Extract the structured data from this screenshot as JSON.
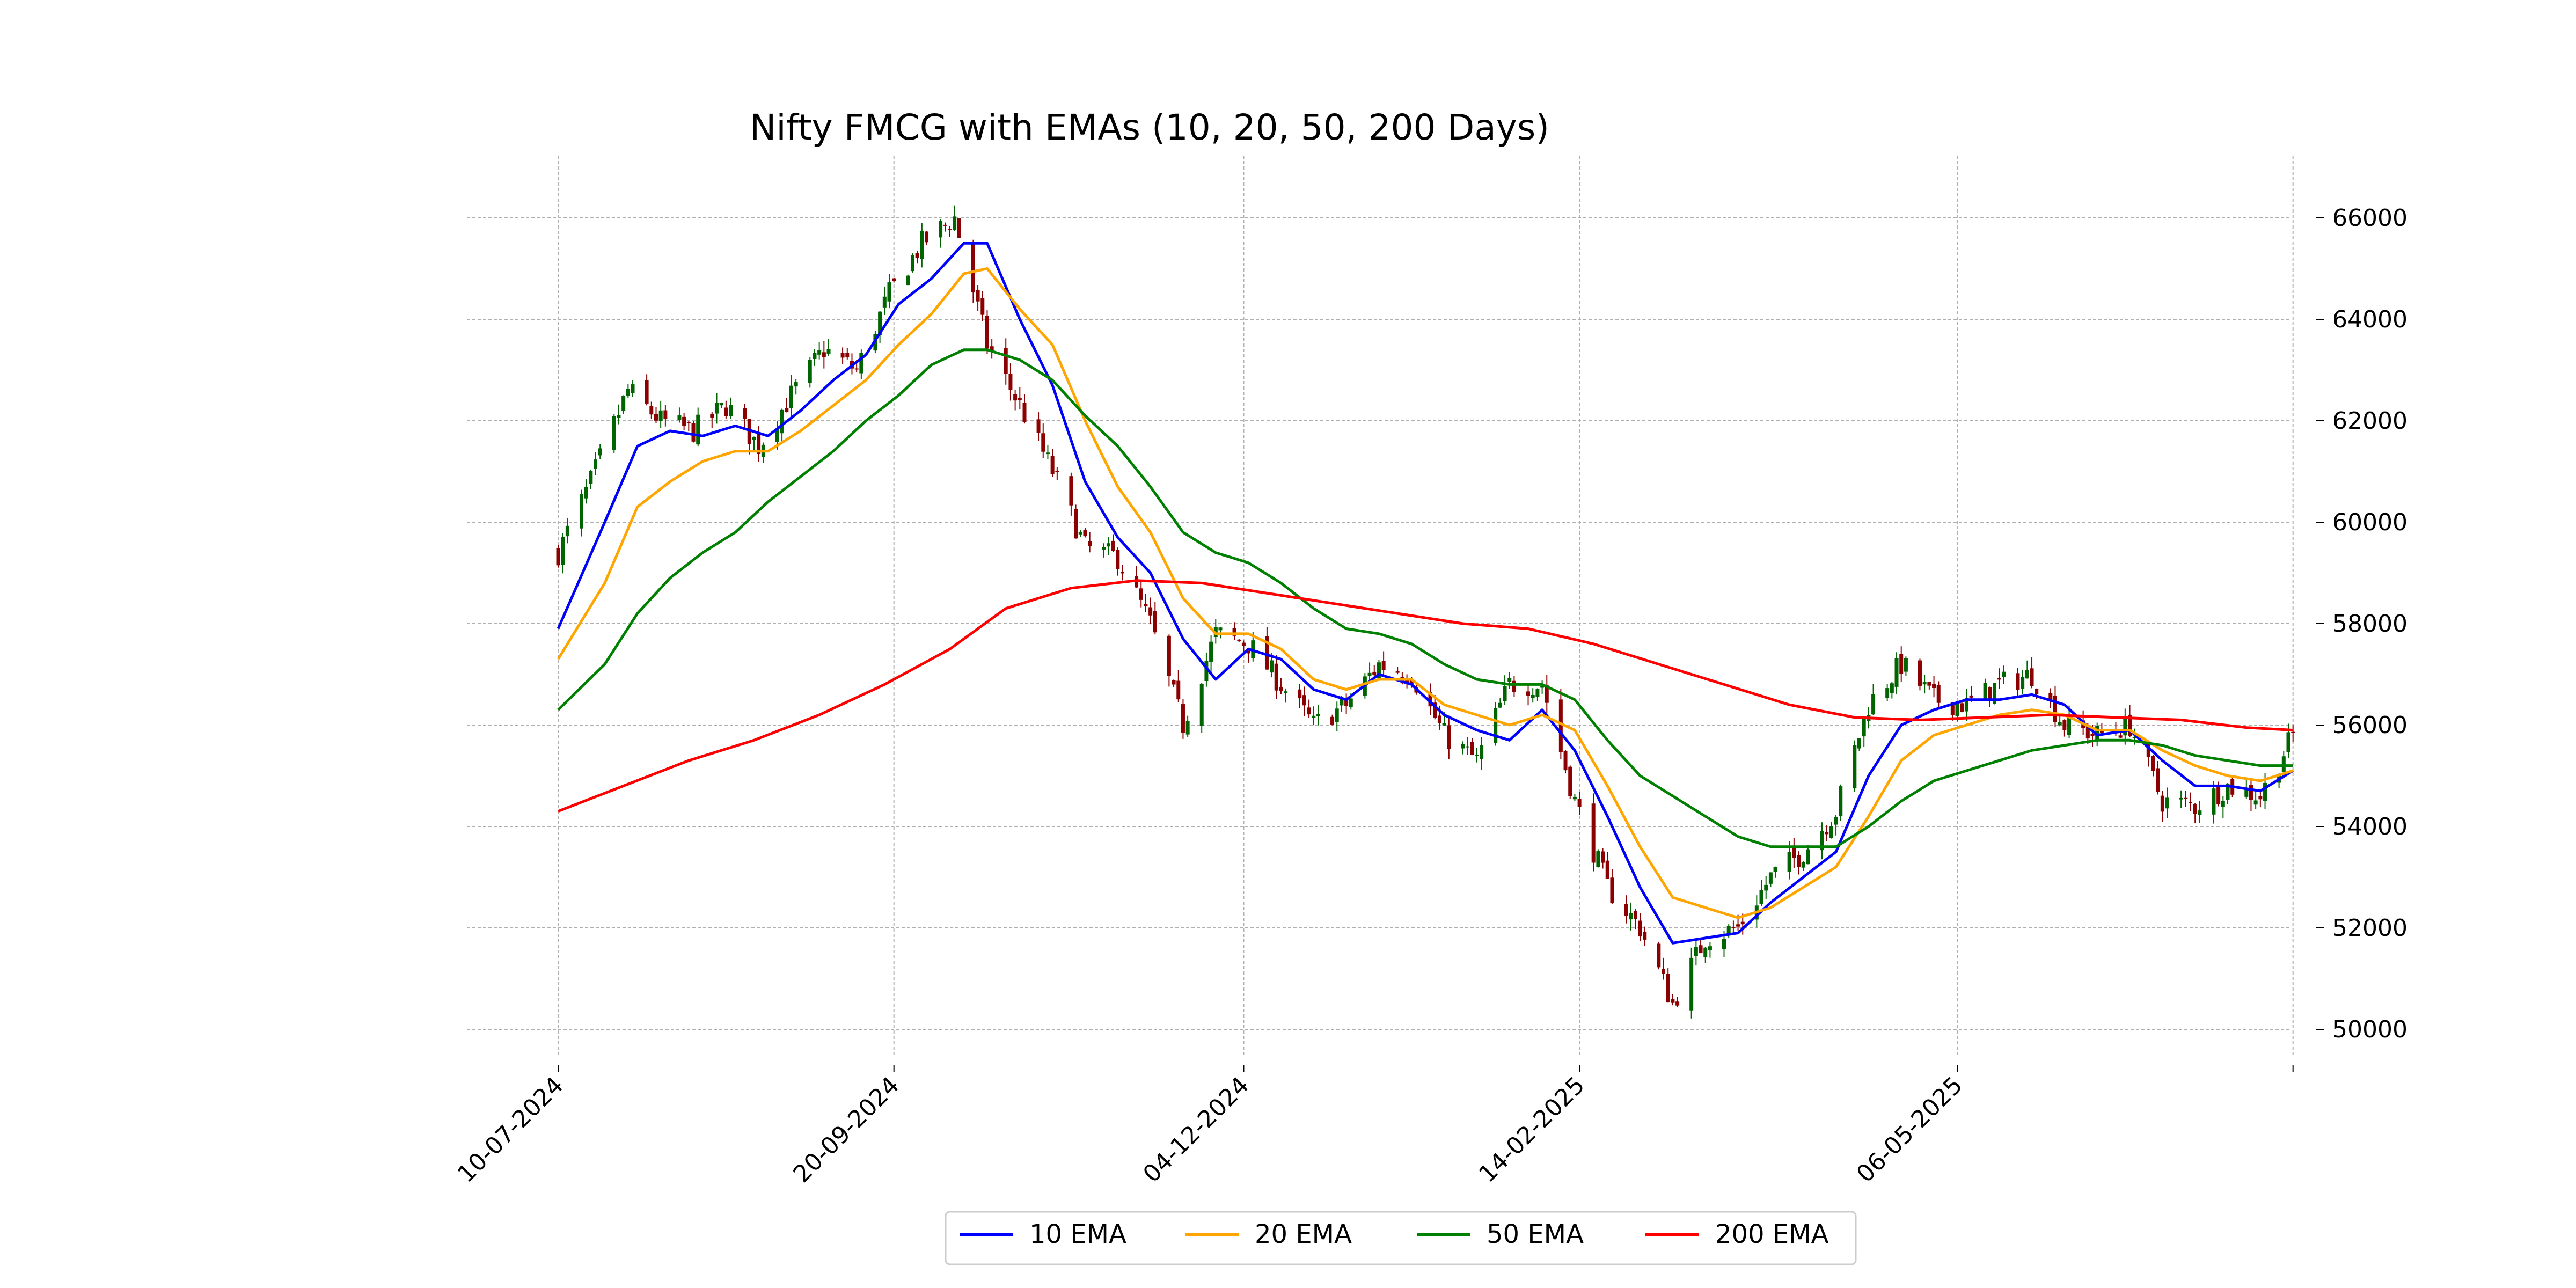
{
  "chart_data": {
    "type": "line",
    "title": "Nifty FMCG with EMAs (10, 20, 50, 200 Days)",
    "xlabel": "",
    "ylabel": "",
    "x_ticks": [
      "10-07-2024",
      "20-09-2024",
      "04-12-2024",
      "14-02-2025",
      "06-05-2025"
    ],
    "x_range": [
      "2024-07-10",
      "2025-07-20"
    ],
    "ylim": [
      49500,
      67000
    ],
    "y_ticks": [
      50000,
      52000,
      54000,
      56000,
      58000,
      60000,
      62000,
      64000,
      66000
    ],
    "grid": true,
    "legend_position": "bottom-center",
    "candles": {
      "up_color": "#006400",
      "down_color": "#8b0000",
      "close_anchors": [
        [
          "2024-07-10",
          59400
        ],
        [
          "2024-07-17",
          60800
        ],
        [
          "2024-07-25",
          62600
        ],
        [
          "2024-08-01",
          62000
        ],
        [
          "2024-08-08",
          61800
        ],
        [
          "2024-08-15",
          62300
        ],
        [
          "2024-08-22",
          61500
        ],
        [
          "2024-08-29",
          62500
        ],
        [
          "2024-09-05",
          63400
        ],
        [
          "2024-09-12",
          63000
        ],
        [
          "2024-09-19",
          64500
        ],
        [
          "2024-09-26",
          65500
        ],
        [
          "2024-10-03",
          66000
        ],
        [
          "2024-10-10",
          63500
        ],
        [
          "2024-10-17",
          62300
        ],
        [
          "2024-10-24",
          61000
        ],
        [
          "2024-10-31",
          59500
        ],
        [
          "2024-11-07",
          59300
        ],
        [
          "2024-11-14",
          58000
        ],
        [
          "2024-11-21",
          56000
        ],
        [
          "2024-11-28",
          57800
        ],
        [
          "2024-12-05",
          57600
        ],
        [
          "2024-12-12",
          56800
        ],
        [
          "2024-12-19",
          56000
        ],
        [
          "2024-12-26",
          56400
        ],
        [
          "2025-01-02",
          57200
        ],
        [
          "2025-01-09",
          57000
        ],
        [
          "2025-01-16",
          55800
        ],
        [
          "2025-01-23",
          55300
        ],
        [
          "2025-01-30",
          56800
        ],
        [
          "2025-02-06",
          56800
        ],
        [
          "2025-02-13",
          54500
        ],
        [
          "2025-02-20",
          52800
        ],
        [
          "2025-02-27",
          52000
        ],
        [
          "2025-03-06",
          50500
        ],
        [
          "2025-03-13",
          51800
        ],
        [
          "2025-03-20",
          52000
        ],
        [
          "2025-03-27",
          53000
        ],
        [
          "2025-04-03",
          53500
        ],
        [
          "2025-04-10",
          54300
        ],
        [
          "2025-04-17",
          56400
        ],
        [
          "2025-04-24",
          57200
        ],
        [
          "2025-05-01",
          56500
        ],
        [
          "2025-05-08",
          56400
        ],
        [
          "2025-05-15",
          56800
        ],
        [
          "2025-05-22",
          57000
        ],
        [
          "2025-05-29",
          56000
        ],
        [
          "2025-06-05",
          55800
        ],
        [
          "2025-06-12",
          56000
        ],
        [
          "2025-06-19",
          54500
        ],
        [
          "2025-06-26",
          54400
        ],
        [
          "2025-07-03",
          54800
        ],
        [
          "2025-07-10",
          54600
        ],
        [
          "2025-07-17",
          55800
        ]
      ]
    },
    "series": [
      {
        "name": "10 EMA",
        "color": "#0000ff",
        "points": [
          [
            "2024-07-10",
            57900
          ],
          [
            "2024-07-20",
            60000
          ],
          [
            "2024-07-27",
            61500
          ],
          [
            "2024-08-03",
            61800
          ],
          [
            "2024-08-10",
            61700
          ],
          [
            "2024-08-17",
            61900
          ],
          [
            "2024-08-24",
            61700
          ],
          [
            "2024-08-31",
            62200
          ],
          [
            "2024-09-07",
            62800
          ],
          [
            "2024-09-14",
            63300
          ],
          [
            "2024-09-21",
            64300
          ],
          [
            "2024-09-28",
            64800
          ],
          [
            "2024-10-05",
            65500
          ],
          [
            "2024-10-10",
            65500
          ],
          [
            "2024-10-17",
            64000
          ],
          [
            "2024-10-24",
            62700
          ],
          [
            "2024-10-31",
            60800
          ],
          [
            "2024-11-07",
            59700
          ],
          [
            "2024-11-14",
            59000
          ],
          [
            "2024-11-21",
            57700
          ],
          [
            "2024-11-28",
            56900
          ],
          [
            "2024-12-05",
            57500
          ],
          [
            "2024-12-12",
            57300
          ],
          [
            "2024-12-19",
            56700
          ],
          [
            "2024-12-26",
            56500
          ],
          [
            "2025-01-02",
            57000
          ],
          [
            "2025-01-09",
            56800
          ],
          [
            "2025-01-16",
            56200
          ],
          [
            "2025-01-23",
            55900
          ],
          [
            "2025-01-30",
            55700
          ],
          [
            "2025-02-06",
            56300
          ],
          [
            "2025-02-13",
            55500
          ],
          [
            "2025-02-20",
            54200
          ],
          [
            "2025-02-27",
            52800
          ],
          [
            "2025-03-06",
            51700
          ],
          [
            "2025-03-13",
            51800
          ],
          [
            "2025-03-20",
            51900
          ],
          [
            "2025-03-27",
            52500
          ],
          [
            "2025-04-03",
            53000
          ],
          [
            "2025-04-10",
            53500
          ],
          [
            "2025-04-17",
            55000
          ],
          [
            "2025-04-24",
            56000
          ],
          [
            "2025-05-01",
            56300
          ],
          [
            "2025-05-08",
            56500
          ],
          [
            "2025-05-15",
            56500
          ],
          [
            "2025-05-22",
            56600
          ],
          [
            "2025-05-29",
            56400
          ],
          [
            "2025-06-05",
            55800
          ],
          [
            "2025-06-12",
            55900
          ],
          [
            "2025-06-19",
            55300
          ],
          [
            "2025-06-26",
            54800
          ],
          [
            "2025-07-03",
            54800
          ],
          [
            "2025-07-10",
            54700
          ],
          [
            "2025-07-17",
            55100
          ]
        ]
      },
      {
        "name": "20 EMA",
        "color": "#ffa500",
        "points": [
          [
            "2024-07-10",
            57300
          ],
          [
            "2024-07-20",
            58800
          ],
          [
            "2024-07-27",
            60300
          ],
          [
            "2024-08-03",
            60800
          ],
          [
            "2024-08-10",
            61200
          ],
          [
            "2024-08-17",
            61400
          ],
          [
            "2024-08-24",
            61400
          ],
          [
            "2024-08-31",
            61800
          ],
          [
            "2024-09-07",
            62300
          ],
          [
            "2024-09-14",
            62800
          ],
          [
            "2024-09-21",
            63500
          ],
          [
            "2024-09-28",
            64100
          ],
          [
            "2024-10-05",
            64900
          ],
          [
            "2024-10-10",
            65000
          ],
          [
            "2024-10-17",
            64200
          ],
          [
            "2024-10-24",
            63500
          ],
          [
            "2024-10-31",
            62000
          ],
          [
            "2024-11-07",
            60700
          ],
          [
            "2024-11-14",
            59800
          ],
          [
            "2024-11-21",
            58500
          ],
          [
            "2024-11-28",
            57800
          ],
          [
            "2024-12-05",
            57800
          ],
          [
            "2024-12-12",
            57500
          ],
          [
            "2024-12-19",
            56900
          ],
          [
            "2024-12-26",
            56700
          ],
          [
            "2025-01-02",
            56900
          ],
          [
            "2025-01-09",
            56900
          ],
          [
            "2025-01-16",
            56400
          ],
          [
            "2025-01-23",
            56200
          ],
          [
            "2025-01-30",
            56000
          ],
          [
            "2025-02-06",
            56200
          ],
          [
            "2025-02-13",
            55900
          ],
          [
            "2025-02-20",
            54800
          ],
          [
            "2025-02-27",
            53600
          ],
          [
            "2025-03-06",
            52600
          ],
          [
            "2025-03-13",
            52400
          ],
          [
            "2025-03-20",
            52200
          ],
          [
            "2025-03-27",
            52400
          ],
          [
            "2025-04-03",
            52800
          ],
          [
            "2025-04-10",
            53200
          ],
          [
            "2025-04-17",
            54200
          ],
          [
            "2025-04-24",
            55300
          ],
          [
            "2025-05-01",
            55800
          ],
          [
            "2025-05-08",
            56000
          ],
          [
            "2025-05-15",
            56200
          ],
          [
            "2025-05-22",
            56300
          ],
          [
            "2025-05-29",
            56200
          ],
          [
            "2025-06-05",
            55900
          ],
          [
            "2025-06-12",
            55900
          ],
          [
            "2025-06-19",
            55500
          ],
          [
            "2025-06-26",
            55200
          ],
          [
            "2025-07-03",
            55000
          ],
          [
            "2025-07-10",
            54900
          ],
          [
            "2025-07-17",
            55100
          ]
        ]
      },
      {
        "name": "50 EMA",
        "color": "#008000",
        "points": [
          [
            "2024-07-10",
            56300
          ],
          [
            "2024-07-20",
            57200
          ],
          [
            "2024-07-27",
            58200
          ],
          [
            "2024-08-03",
            58900
          ],
          [
            "2024-08-10",
            59400
          ],
          [
            "2024-08-17",
            59800
          ],
          [
            "2024-08-24",
            60400
          ],
          [
            "2024-08-31",
            60900
          ],
          [
            "2024-09-07",
            61400
          ],
          [
            "2024-09-14",
            62000
          ],
          [
            "2024-09-21",
            62500
          ],
          [
            "2024-09-28",
            63100
          ],
          [
            "2024-10-05",
            63400
          ],
          [
            "2024-10-10",
            63400
          ],
          [
            "2024-10-17",
            63200
          ],
          [
            "2024-10-24",
            62800
          ],
          [
            "2024-10-31",
            62100
          ],
          [
            "2024-11-07",
            61500
          ],
          [
            "2024-11-14",
            60700
          ],
          [
            "2024-11-21",
            59800
          ],
          [
            "2024-11-28",
            59400
          ],
          [
            "2024-12-05",
            59200
          ],
          [
            "2024-12-12",
            58800
          ],
          [
            "2024-12-19",
            58300
          ],
          [
            "2024-12-26",
            57900
          ],
          [
            "2025-01-02",
            57800
          ],
          [
            "2025-01-09",
            57600
          ],
          [
            "2025-01-16",
            57200
          ],
          [
            "2025-01-23",
            56900
          ],
          [
            "2025-01-30",
            56800
          ],
          [
            "2025-02-06",
            56800
          ],
          [
            "2025-02-13",
            56500
          ],
          [
            "2025-02-20",
            55700
          ],
          [
            "2025-02-27",
            55000
          ],
          [
            "2025-03-06",
            54600
          ],
          [
            "2025-03-13",
            54200
          ],
          [
            "2025-03-20",
            53800
          ],
          [
            "2025-03-27",
            53600
          ],
          [
            "2025-04-03",
            53600
          ],
          [
            "2025-04-10",
            53600
          ],
          [
            "2025-04-17",
            54000
          ],
          [
            "2025-04-24",
            54500
          ],
          [
            "2025-05-01",
            54900
          ],
          [
            "2025-05-08",
            55100
          ],
          [
            "2025-05-15",
            55300
          ],
          [
            "2025-05-22",
            55500
          ],
          [
            "2025-05-29",
            55600
          ],
          [
            "2025-06-05",
            55700
          ],
          [
            "2025-06-12",
            55700
          ],
          [
            "2025-06-19",
            55600
          ],
          [
            "2025-06-26",
            55400
          ],
          [
            "2025-07-03",
            55300
          ],
          [
            "2025-07-10",
            55200
          ],
          [
            "2025-07-17",
            55200
          ]
        ]
      },
      {
        "name": "200 EMA",
        "color": "#ff0000",
        "points": [
          [
            "2024-07-10",
            54300
          ],
          [
            "2024-07-24",
            54800
          ],
          [
            "2024-08-07",
            55300
          ],
          [
            "2024-08-21",
            55700
          ],
          [
            "2024-09-04",
            56200
          ],
          [
            "2024-09-18",
            56800
          ],
          [
            "2024-10-02",
            57500
          ],
          [
            "2024-10-14",
            58300
          ],
          [
            "2024-10-28",
            58700
          ],
          [
            "2024-11-11",
            58850
          ],
          [
            "2024-11-25",
            58800
          ],
          [
            "2024-12-09",
            58600
          ],
          [
            "2024-12-23",
            58400
          ],
          [
            "2025-01-06",
            58200
          ],
          [
            "2025-01-20",
            58000
          ],
          [
            "2025-02-03",
            57900
          ],
          [
            "2025-02-17",
            57600
          ],
          [
            "2025-03-03",
            57200
          ],
          [
            "2025-03-17",
            56800
          ],
          [
            "2025-03-31",
            56400
          ],
          [
            "2025-04-14",
            56150
          ],
          [
            "2025-04-28",
            56100
          ],
          [
            "2025-05-12",
            56150
          ],
          [
            "2025-05-26",
            56200
          ],
          [
            "2025-06-09",
            56150
          ],
          [
            "2025-06-23",
            56100
          ],
          [
            "2025-07-07",
            55950
          ],
          [
            "2025-07-17",
            55900
          ]
        ]
      }
    ]
  }
}
